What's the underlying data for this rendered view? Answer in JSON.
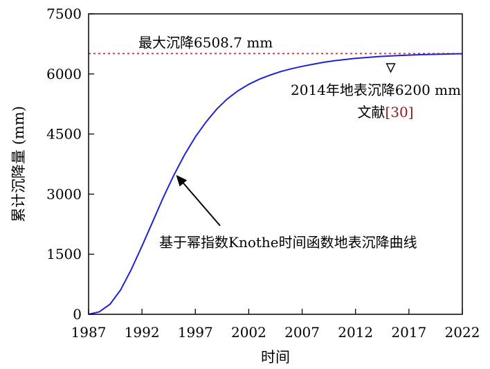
{
  "chart_data": {
    "type": "line",
    "title": "",
    "xlabel": "时间",
    "ylabel": "累计沉降量 (mm)",
    "xlim": [
      1987,
      2022
    ],
    "ylim": [
      0,
      7500
    ],
    "xticks": [
      1987,
      1992,
      1997,
      2002,
      2007,
      2012,
      2017,
      2022
    ],
    "yticks": [
      0,
      1500,
      3000,
      4500,
      6000,
      7500
    ],
    "series": [
      {
        "name": "基于幂指数Knothe时间函数地表沉降曲线",
        "color": "#2020d8",
        "x": [
          1987,
          1988,
          1989,
          1990,
          1991,
          1992,
          1993,
          1994,
          1995,
          1996,
          1997,
          1998,
          1999,
          2000,
          2001,
          2002,
          2003,
          2004,
          2005,
          2006,
          2007,
          2008,
          2009,
          2010,
          2011,
          2012,
          2013,
          2014,
          2015,
          2016,
          2017,
          2018,
          2019,
          2020,
          2021,
          2022
        ],
        "y": [
          0,
          60,
          250,
          610,
          1120,
          1700,
          2310,
          2920,
          3480,
          3990,
          4430,
          4800,
          5120,
          5380,
          5580,
          5740,
          5870,
          5970,
          6060,
          6130,
          6190,
          6240,
          6290,
          6330,
          6360,
          6390,
          6410,
          6430,
          6445,
          6460,
          6470,
          6480,
          6488,
          6495,
          6500,
          6505
        ]
      }
    ],
    "reference_line": {
      "label": "最大沉降6508.7 mm",
      "value": 6508.7,
      "color": "#e02020",
      "style": "dotted"
    },
    "observation": {
      "year": 2014,
      "value": 6200,
      "label": "2014年地表沉降6200 mm",
      "source_label": "文献",
      "citation": "[30]",
      "citation_color": "#8b1a1a"
    },
    "curve_annotation": {
      "label": "基于幂指数Knothe时间函数地表沉降曲线",
      "arrow_point_year": 1995,
      "arrow_point_value": 3530
    }
  }
}
